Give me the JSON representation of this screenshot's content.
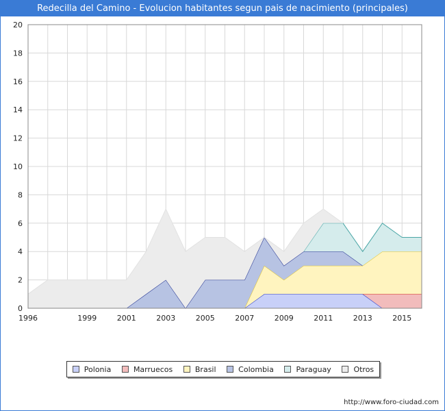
{
  "title": "Redecilla del Camino - Evolucion habitantes segun pais de nacimiento (principales)",
  "source_text": "http://www.foro-ciudad.com",
  "chart_data": {
    "type": "area",
    "stacked": true,
    "x": [
      1996,
      1997,
      1998,
      1999,
      2000,
      2001,
      2002,
      2003,
      2004,
      2005,
      2006,
      2007,
      2008,
      2009,
      2010,
      2011,
      2012,
      2013,
      2014,
      2015,
      2016
    ],
    "x_ticks": [
      1996,
      1999,
      2001,
      2003,
      2005,
      2007,
      2009,
      2011,
      2013,
      2015
    ],
    "y_ticks": [
      0,
      2,
      4,
      6,
      8,
      10,
      12,
      14,
      16,
      18,
      20
    ],
    "ylim": [
      0,
      20
    ],
    "xlim": [
      1996,
      2016
    ],
    "grid": true,
    "legend_position": "bottom",
    "series": [
      {
        "name": "Polonia",
        "color": "#c8d0f8",
        "line": "#1a2fcc",
        "values": [
          0,
          0,
          0,
          0,
          0,
          0,
          0,
          0,
          0,
          0,
          0,
          0,
          1,
          1,
          1,
          1,
          1,
          1,
          0,
          0,
          0
        ]
      },
      {
        "name": "Marruecos",
        "color": "#f2bcbc",
        "line": "#cc1a1a",
        "values": [
          0,
          0,
          0,
          0,
          0,
          0,
          0,
          0,
          0,
          0,
          0,
          0,
          0,
          0,
          0,
          0,
          0,
          0,
          1,
          1,
          1
        ]
      },
      {
        "name": "Brasil",
        "color": "#fff4bf",
        "line": "#e0c22a",
        "values": [
          0,
          0,
          0,
          0,
          0,
          0,
          0,
          0,
          0,
          0,
          0,
          0,
          2,
          1,
          2,
          2,
          2,
          2,
          3,
          3,
          3
        ]
      },
      {
        "name": "Colombia",
        "color": "#b7c3e3",
        "line": "#1a2a8c",
        "values": [
          0,
          0,
          0,
          0,
          0,
          0,
          1,
          2,
          0,
          2,
          2,
          2,
          2,
          1,
          1,
          1,
          1,
          0,
          0,
          0,
          0
        ]
      },
      {
        "name": "Paraguay",
        "color": "#d5ecec",
        "line": "#4aa6a6",
        "values": [
          0,
          0,
          0,
          0,
          0,
          0,
          0,
          0,
          0,
          0,
          0,
          0,
          0,
          0,
          0,
          2,
          2,
          1,
          2,
          1,
          1
        ]
      },
      {
        "name": "Otros",
        "color": "#ececec",
        "line": "#e2e2e2",
        "values": [
          1,
          2,
          2,
          2,
          2,
          2,
          3,
          5,
          4,
          3,
          3,
          2,
          0,
          1,
          2,
          1,
          0,
          0,
          0,
          0,
          0
        ]
      }
    ]
  }
}
